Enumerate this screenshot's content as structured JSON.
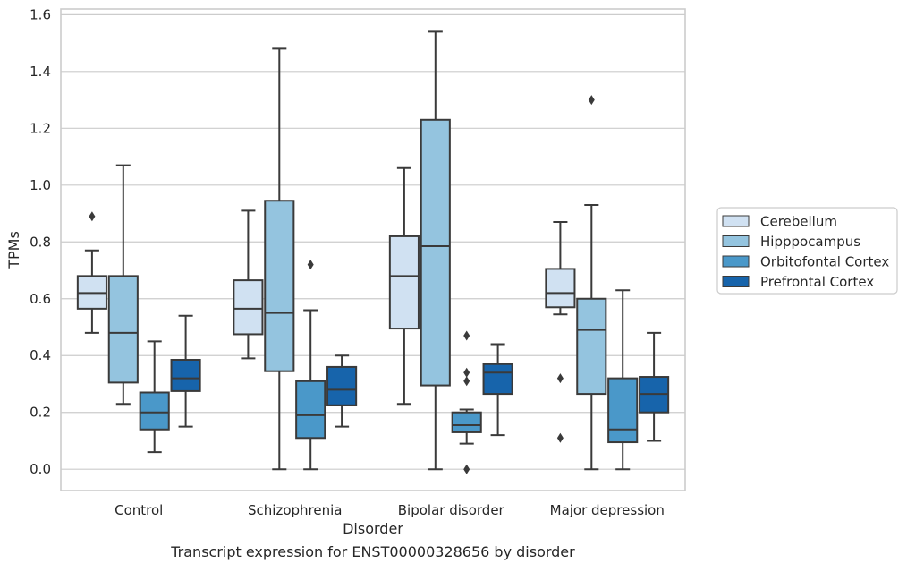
{
  "caption": "Transcript expression for ENST00000328656 by disorder",
  "chart_data": {
    "type": "box",
    "xlabel": "Disorder",
    "ylabel": "TPMs",
    "ylim": [
      -0.075,
      1.62
    ],
    "yticks": [
      "0.0",
      "0.2",
      "0.4",
      "0.6",
      "0.8",
      "1.0",
      "1.2",
      "1.4",
      "1.6"
    ],
    "categories": [
      "Control",
      "Schizophrenia",
      "Bipolar disorder",
      "Major depression"
    ],
    "grid": "horizontal",
    "legend_position": "right",
    "series": [
      {
        "name": "Cerebellum",
        "color": "#d0e1f2",
        "boxes": [
          {
            "q1": 0.565,
            "median": 0.62,
            "q3": 0.68,
            "whisker_low": 0.48,
            "whisker_high": 0.77,
            "outliers": [
              0.89
            ]
          },
          {
            "q1": 0.475,
            "median": 0.565,
            "q3": 0.665,
            "whisker_low": 0.39,
            "whisker_high": 0.91,
            "outliers": []
          },
          {
            "q1": 0.495,
            "median": 0.68,
            "q3": 0.82,
            "whisker_low": 0.23,
            "whisker_high": 1.06,
            "outliers": []
          },
          {
            "q1": 0.57,
            "median": 0.62,
            "q3": 0.705,
            "whisker_low": 0.545,
            "whisker_high": 0.87,
            "outliers": [
              0.32,
              0.11
            ]
          }
        ]
      },
      {
        "name": "Hipppocampus",
        "color": "#94c4df",
        "boxes": [
          {
            "q1": 0.305,
            "median": 0.48,
            "q3": 0.68,
            "whisker_low": 0.23,
            "whisker_high": 1.07,
            "outliers": []
          },
          {
            "q1": 0.345,
            "median": 0.55,
            "q3": 0.945,
            "whisker_low": 0.0,
            "whisker_high": 1.48,
            "outliers": []
          },
          {
            "q1": 0.295,
            "median": 0.785,
            "q3": 1.23,
            "whisker_low": 0.0,
            "whisker_high": 1.54,
            "outliers": []
          },
          {
            "q1": 0.265,
            "median": 0.49,
            "q3": 0.6,
            "whisker_low": 0.0,
            "whisker_high": 0.93,
            "outliers": [
              1.3
            ]
          }
        ]
      },
      {
        "name": "Orbitofontal Cortex",
        "color": "#4a98c9",
        "boxes": [
          {
            "q1": 0.14,
            "median": 0.2,
            "q3": 0.27,
            "whisker_low": 0.06,
            "whisker_high": 0.45,
            "outliers": []
          },
          {
            "q1": 0.11,
            "median": 0.19,
            "q3": 0.31,
            "whisker_low": 0.0,
            "whisker_high": 0.56,
            "outliers": [
              0.72
            ]
          },
          {
            "q1": 0.13,
            "median": 0.155,
            "q3": 0.2,
            "whisker_low": 0.09,
            "whisker_high": 0.21,
            "outliers": [
              0.47,
              0.34,
              0.31,
              0.0
            ]
          },
          {
            "q1": 0.095,
            "median": 0.14,
            "q3": 0.32,
            "whisker_low": 0.0,
            "whisker_high": 0.63,
            "outliers": []
          }
        ]
      },
      {
        "name": "Prefrontal Cortex",
        "color": "#1764ab",
        "boxes": [
          {
            "q1": 0.275,
            "median": 0.32,
            "q3": 0.385,
            "whisker_low": 0.15,
            "whisker_high": 0.54,
            "outliers": []
          },
          {
            "q1": 0.225,
            "median": 0.28,
            "q3": 0.36,
            "whisker_low": 0.15,
            "whisker_high": 0.4,
            "outliers": []
          },
          {
            "q1": 0.265,
            "median": 0.34,
            "q3": 0.37,
            "whisker_low": 0.12,
            "whisker_high": 0.44,
            "outliers": []
          },
          {
            "q1": 0.2,
            "median": 0.265,
            "q3": 0.325,
            "whisker_low": 0.1,
            "whisker_high": 0.48,
            "outliers": []
          }
        ]
      }
    ]
  }
}
